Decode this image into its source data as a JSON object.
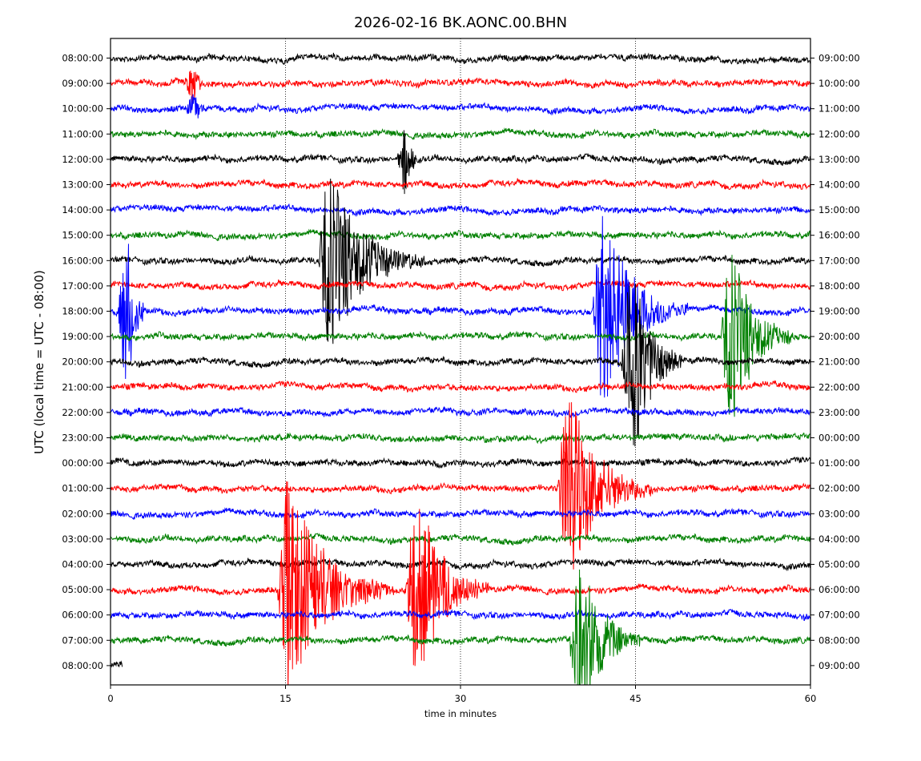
{
  "chart_data": {
    "type": "line",
    "title": "2026-02-16 BK.AONC.00.BHN",
    "xlabel": "time in minutes",
    "ylabel": "UTC (local time = UTC - 08:00)",
    "xlim": [
      0,
      60
    ],
    "x_ticks": [
      0,
      15,
      30,
      45,
      60
    ],
    "grid": "vertical dotted lines at 15, 30, 45",
    "colors": [
      "#000000",
      "#ff0000",
      "#0000ff",
      "#008000"
    ],
    "left_labels": [
      "08:00:00",
      "09:00:00",
      "10:00:00",
      "11:00:00",
      "12:00:00",
      "13:00:00",
      "14:00:00",
      "15:00:00",
      "16:00:00",
      "17:00:00",
      "18:00:00",
      "19:00:00",
      "20:00:00",
      "21:00:00",
      "22:00:00",
      "23:00:00",
      "00:00:00",
      "01:00:00",
      "02:00:00",
      "03:00:00",
      "04:00:00",
      "05:00:00",
      "06:00:00",
      "07:00:00",
      "08:00:00"
    ],
    "right_labels": [
      "09:00:00",
      "10:00:00",
      "11:00:00",
      "12:00:00",
      "13:00:00",
      "14:00:00",
      "15:00:00",
      "16:00:00",
      "17:00:00",
      "18:00:00",
      "19:00:00",
      "20:00:00",
      "21:00:00",
      "22:00:00",
      "23:00:00",
      "00:00:00",
      "01:00:00",
      "02:00:00",
      "03:00:00",
      "04:00:00",
      "05:00:00",
      "06:00:00",
      "07:00:00",
      "08:00:00",
      "09:00:00"
    ],
    "last_trace_end_minute": 1.0,
    "events": [
      {
        "row": 1,
        "minute": 6.5,
        "amplitude": 1.6,
        "duration_min": 1.5
      },
      {
        "row": 2,
        "minute": 6.5,
        "amplitude": 0.9,
        "duration_min": 2.5
      },
      {
        "row": 4,
        "minute": 24.7,
        "amplitude": 2.8,
        "duration_min": 1.5
      },
      {
        "row": 8,
        "minute": 18.0,
        "amplitude": 6.5,
        "duration_min": 9.0
      },
      {
        "row": 10,
        "minute": 0.8,
        "amplitude": 6.0,
        "duration_min": 2.0
      },
      {
        "row": 12,
        "minute": 44.0,
        "amplitude": 7.5,
        "duration_min": 5.0
      },
      {
        "row": 10,
        "minute": 41.5,
        "amplitude": 7.0,
        "duration_min": 8.0
      },
      {
        "row": 11,
        "minute": 52.5,
        "amplitude": 6.5,
        "duration_min": 6.0
      },
      {
        "row": 21,
        "minute": 14.5,
        "amplitude": 7.5,
        "duration_min": 10.0
      },
      {
        "row": 21,
        "minute": 25.5,
        "amplitude": 7.0,
        "duration_min": 7.0
      },
      {
        "row": 17,
        "minute": 38.5,
        "amplitude": 7.0,
        "duration_min": 8.0
      },
      {
        "row": 23,
        "minute": 39.5,
        "amplitude": 6.5,
        "duration_min": 6.0
      }
    ]
  }
}
